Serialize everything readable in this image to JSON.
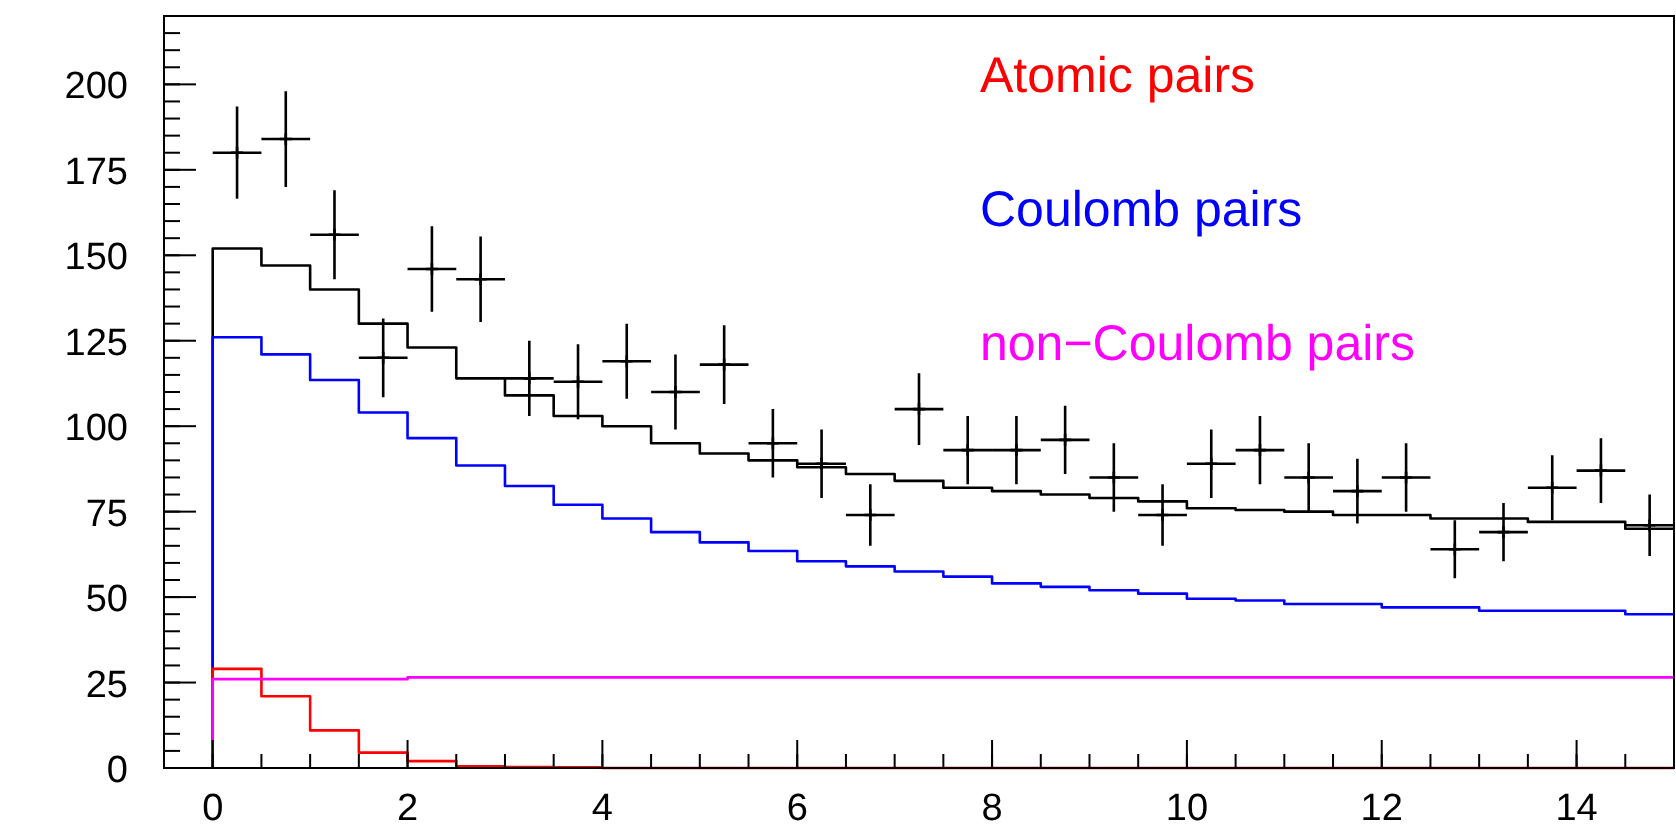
{
  "chart_data": {
    "type": "histogram",
    "bins": [
      0,
      0.5,
      1,
      1.5,
      2,
      2.5,
      3,
      3.5,
      4,
      4.5,
      5,
      5.5,
      6,
      6.5,
      7,
      7.5,
      8,
      8.5,
      9,
      9.5,
      10,
      10.5,
      11,
      11.5,
      12,
      12.5,
      13,
      13.5,
      14,
      14.5,
      15
    ],
    "xlim": [
      -0.5,
      15
    ],
    "xticks": [
      0,
      2,
      4,
      6,
      8,
      10,
      12,
      14
    ],
    "ylim": [
      0,
      220
    ],
    "yticks": [
      0,
      25,
      50,
      75,
      100,
      125,
      150,
      175,
      200
    ],
    "grid": false,
    "legend": "top right",
    "series": [
      {
        "color": "#000000",
        "values": [
          152,
          147,
          140,
          130,
          123,
          114,
          109,
          103,
          100,
          95,
          92,
          90,
          88,
          86,
          84,
          82,
          81,
          80,
          79,
          78,
          76,
          75.5,
          75,
          74,
          74,
          73,
          73,
          72,
          72,
          70
        ]
      },
      {
        "name": "Coulomb pairs",
        "color": "#0000ff",
        "values": [
          126,
          121,
          113.5,
          104,
          96.5,
          88.5,
          82.5,
          77,
          73,
          69,
          66,
          63.5,
          60.5,
          59,
          57.5,
          56,
          54,
          53,
          52,
          51,
          49.5,
          49,
          48,
          48,
          47,
          47,
          46,
          46,
          46,
          45
        ]
      },
      {
        "name": "Atomic pairs",
        "color": "#ff0000",
        "values": [
          29,
          21,
          11,
          4.5,
          2,
          0.5,
          0.3,
          0.2,
          0,
          0,
          0,
          0,
          0,
          0,
          0,
          0,
          0,
          0,
          0,
          0,
          0,
          0,
          0,
          0,
          0,
          0,
          0,
          0,
          0,
          0
        ]
      },
      {
        "name": "non−Coulomb pairs",
        "color": "#ff00ff",
        "values": [
          26,
          26,
          26,
          26,
          26.5,
          26.5,
          26.5,
          26.5,
          26.5,
          26.5,
          26.5,
          26.5,
          26.5,
          26.5,
          26.5,
          26.5,
          26.5,
          26.5,
          26.5,
          26.5,
          26.5,
          26.5,
          26.5,
          26.5,
          26.5,
          26.5,
          26.5,
          26.5,
          26.5,
          26.5
        ]
      },
      {
        "type": "scatter",
        "color": "#000000",
        "marker": "cross",
        "x": [
          0.25,
          0.75,
          1.25,
          1.75,
          2.25,
          2.75,
          3.25,
          3.75,
          4.25,
          4.75,
          5.25,
          5.75,
          6.25,
          6.75,
          7.25,
          7.75,
          8.25,
          8.75,
          9.25,
          9.75,
          10.25,
          10.75,
          11.25,
          11.75,
          12.25,
          12.75,
          13.25,
          13.75,
          14.25,
          14.75
        ],
        "values": [
          180,
          184,
          156,
          120,
          146,
          143,
          114,
          113,
          119,
          110,
          118,
          95,
          89,
          74,
          105,
          93,
          93,
          96,
          85,
          74,
          89,
          93,
          85,
          81,
          85,
          64,
          69,
          82,
          87,
          71
        ],
        "errors": [
          13.5,
          14,
          13,
          11.5,
          12.5,
          12.5,
          11,
          11,
          11,
          11,
          11.5,
          10,
          10,
          9,
          10.5,
          10,
          10,
          10,
          10,
          9,
          10,
          10,
          10,
          9.5,
          10,
          8.5,
          8.5,
          9.5,
          9.5,
          9
        ],
        "xerrors": [
          0.25,
          0.25,
          0.25,
          0.25,
          0.25,
          0.25,
          0.25,
          0.25,
          0.25,
          0.25,
          0.25,
          0.25,
          0.25,
          0.25,
          0.25,
          0.25,
          0.25,
          0.25,
          0.25,
          0.25,
          0.25,
          0.25,
          0.25,
          0.25,
          0.25,
          0.25,
          0.25,
          0.25,
          0.25,
          0.25
        ]
      }
    ]
  }
}
